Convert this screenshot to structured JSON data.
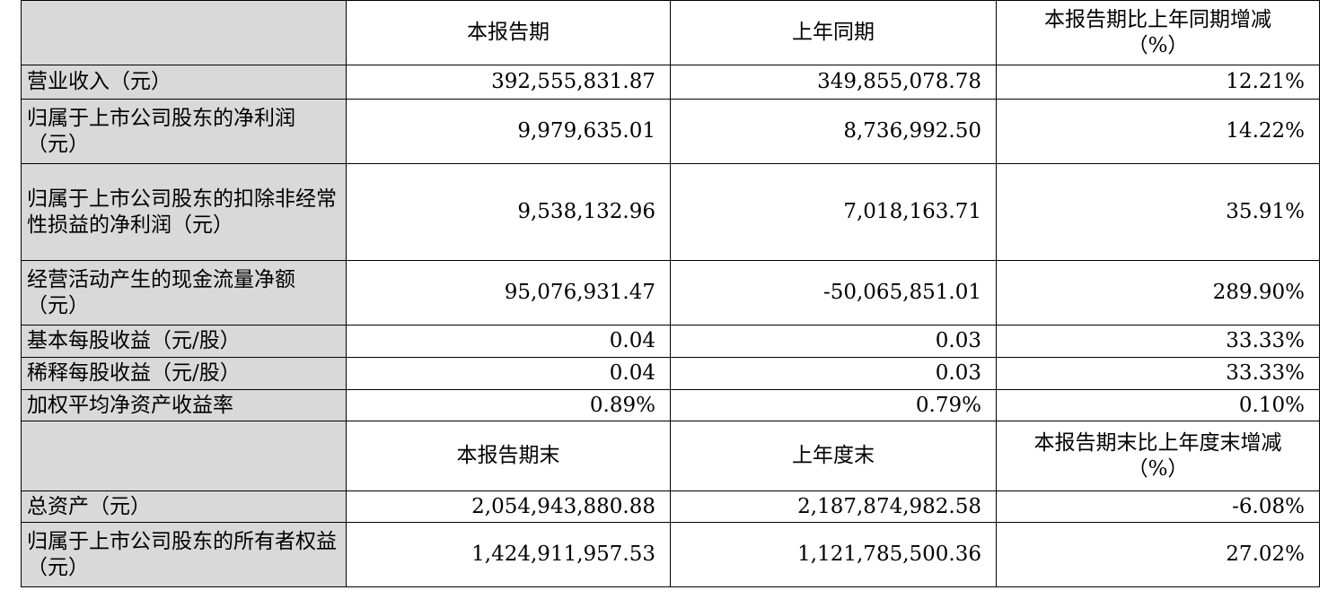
{
  "header1": {
    "col1": "本报告期",
    "col2": "上年同期",
    "col3_line1": "本报告期比上年同期增减",
    "col3_line2": "（%）"
  },
  "rows1": [
    {
      "label": "营业收入（元）",
      "v1": "392,555,831.87",
      "v2": "349,855,078.78",
      "v3": "12.21%"
    },
    {
      "label": "归属于上市公司股东的净利润（元）",
      "v1": "9,979,635.01",
      "v2": "8,736,992.50",
      "v3": "14.22%"
    },
    {
      "label": "归属于上市公司股东的扣除非经常性损益的净利润（元）",
      "v1": "9,538,132.96",
      "v2": "7,018,163.71",
      "v3": "35.91%"
    },
    {
      "label": "经营活动产生的现金流量净额（元）",
      "v1": "95,076,931.47",
      "v2": "-50,065,851.01",
      "v3": "289.90%"
    },
    {
      "label": "基本每股收益（元/股）",
      "v1": "0.04",
      "v2": "0.03",
      "v3": "33.33%"
    },
    {
      "label": "稀释每股收益（元/股）",
      "v1": "0.04",
      "v2": "0.03",
      "v3": "33.33%"
    },
    {
      "label": "加权平均净资产收益率",
      "v1": "0.89%",
      "v2": "0.79%",
      "v3": "0.10%"
    }
  ],
  "header2": {
    "col1": "本报告期末",
    "col2": "上年度末",
    "col3_line1": "本报告期末比上年度末增减",
    "col3_line2": "（%）"
  },
  "rows2": [
    {
      "label": "总资产（元）",
      "v1": "2,054,943,880.88",
      "v2": "2,187,874,982.58",
      "v3": "-6.08%"
    },
    {
      "label": "归属于上市公司股东的所有者权益（元）",
      "v1": "1,424,911,957.53",
      "v2": "1,121,785,500.36",
      "v3": "27.02%"
    }
  ]
}
